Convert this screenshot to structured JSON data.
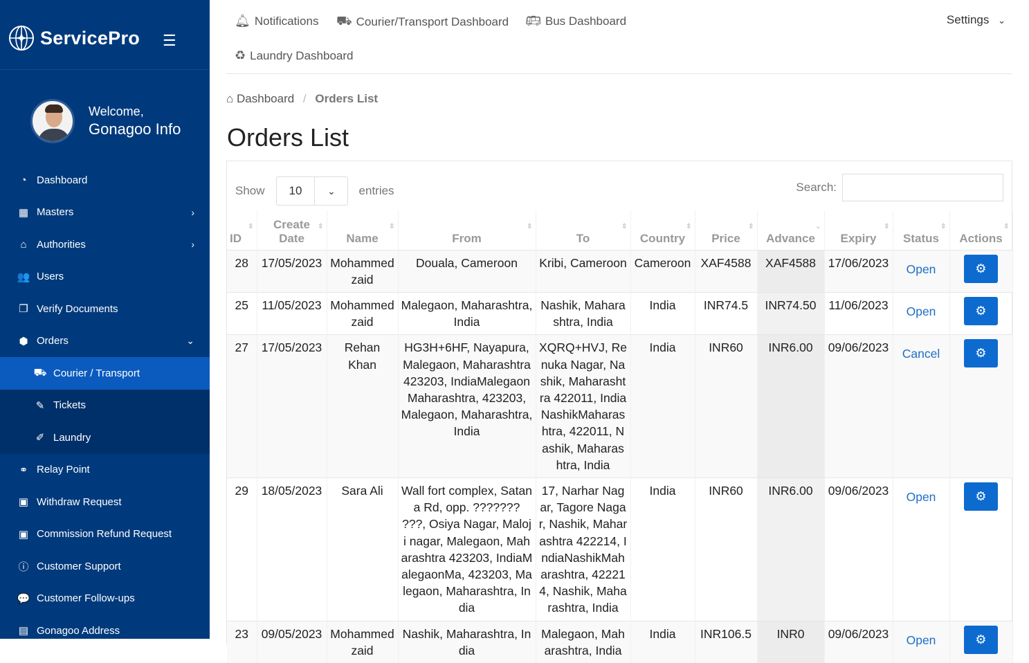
{
  "brand": {
    "name": "ServicePro"
  },
  "profile": {
    "greeting": "Welcome,",
    "name": "Gonagoo Info"
  },
  "sidebar": {
    "items": [
      {
        "label": "Dashboard",
        "icon": "dashboard-icon",
        "glyph": "◔"
      },
      {
        "label": "Masters",
        "icon": "grid-icon",
        "glyph": "▦",
        "chev": "›"
      },
      {
        "label": "Authorities",
        "icon": "bank-icon",
        "glyph": "⌂",
        "chev": "›"
      },
      {
        "label": "Users",
        "icon": "users-icon",
        "glyph": "👥"
      },
      {
        "label": "Verify Documents",
        "icon": "documents-icon",
        "glyph": "❐"
      },
      {
        "label": "Orders",
        "icon": "orders-icon",
        "glyph": "⬢",
        "chev": "⌄"
      },
      {
        "label": "Courier / Transport",
        "icon": "truck-icon",
        "glyph": "⛟"
      },
      {
        "label": "Tickets",
        "icon": "ticket-icon",
        "glyph": "✎"
      },
      {
        "label": "Laundry",
        "icon": "laundry-icon",
        "glyph": "✐"
      },
      {
        "label": "Relay Point",
        "icon": "relay-icon",
        "glyph": "⚭"
      },
      {
        "label": "Withdraw Request",
        "icon": "money-icon",
        "glyph": "▣"
      },
      {
        "label": "Commission Refund Request",
        "icon": "money-icon",
        "glyph": "▣"
      },
      {
        "label": "Customer Support",
        "icon": "info-icon",
        "glyph": "ⓘ"
      },
      {
        "label": "Customer Follow-ups",
        "icon": "chat-icon",
        "glyph": "💬"
      },
      {
        "label": "Gonagoo Address",
        "icon": "address-book-icon",
        "glyph": "▤"
      }
    ]
  },
  "topnav": {
    "notifications": "Notifications",
    "courier": "Courier/Transport Dashboard",
    "bus": "Bus Dashboard",
    "laundry": "Laundry Dashboard",
    "settings": "Settings"
  },
  "breadcrumb": {
    "home": "Dashboard",
    "sep": "/",
    "current": "Orders List"
  },
  "page_title": "Orders List",
  "table_controls": {
    "show": "Show",
    "entries_value": "10",
    "entries": "entries",
    "search_label": "Search:",
    "search_value": ""
  },
  "columns": [
    "ID",
    "Create Date",
    "Name",
    "From",
    "To",
    "Country",
    "Price",
    "Advance",
    "Expiry",
    "Status",
    "Actions"
  ],
  "rows": [
    {
      "id": "28",
      "date": "17/05/2023",
      "name": "Mohammed zaid",
      "from": "Douala, Cameroon",
      "to": "Kribi, Cameroon",
      "country": "Cameroon",
      "price": "XAF4588",
      "advance": "XAF4588",
      "expiry": "17/06/2023",
      "status": "Open"
    },
    {
      "id": "25",
      "date": "11/05/2023",
      "name": "Mohammed zaid",
      "from": "Malegaon, Maharashtra, India",
      "to": "Nashik, Maharashtra, India",
      "country": "India",
      "price": "INR74.5",
      "advance": "INR74.50",
      "expiry": "11/06/2023",
      "status": "Open"
    },
    {
      "id": "27",
      "date": "17/05/2023",
      "name": "Rehan Khan",
      "from": "HG3H+6HF, Nayapura, Malegaon, Maharashtra 423203, IndiaMalegaon Maharashtra, 423203, Malegaon, Maharashtra, India",
      "to": "XQRQ+HVJ, Renuka Nagar, Nashik, Maharashtra 422011, IndiaNashikMaharashtra, 422011, Nashik, Maharashtra, India",
      "country": "India",
      "price": "INR60",
      "advance": "INR6.00",
      "expiry": "09/06/2023",
      "status": "Cancel"
    },
    {
      "id": "29",
      "date": "18/05/2023",
      "name": "Sara Ali",
      "from": "Wall fort complex, Satana Rd, opp. ??????? ???, Osiya Nagar, Maloji nagar, Malegaon, Maharashtra 423203, IndiaMalegaonMa, 423203, Malegaon, Maharashtra, India",
      "to": "17, Narhar Nagar, Tagore Nagar, Nashik, Maharashtra 422214, IndiaNashikMaharashtra, 422214, Nashik, Maharashtra, India",
      "country": "India",
      "price": "INR60",
      "advance": "INR6.00",
      "expiry": "09/06/2023",
      "status": "Open"
    },
    {
      "id": "23",
      "date": "09/05/2023",
      "name": "Mohammed zaid",
      "from": "Nashik, Maharashtra, India",
      "to": "Malegaon, Maharashtra, India",
      "country": "India",
      "price": "INR106.5",
      "advance": "INR0",
      "expiry": "09/06/2023",
      "status": "Open"
    }
  ],
  "colors": {
    "sidebar": "#003a7c",
    "active": "#0b5bbf",
    "action_button": "#0d6bd0",
    "status_link": "#1d6fc4"
  }
}
